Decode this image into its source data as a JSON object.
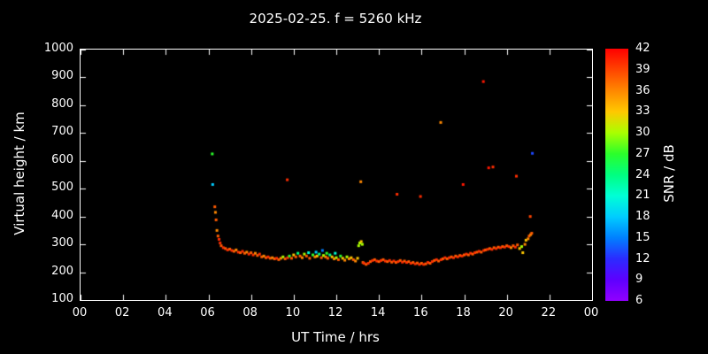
{
  "title": "2025-02-25. f = 5260 kHz",
  "colors": {
    "background": "#000000",
    "foreground": "#ffffff"
  },
  "chart_data": {
    "type": "scatter",
    "title": "2025-02-25. f = 5260 kHz",
    "xlabel": "UT Time / hrs",
    "ylabel": "Virtual height / km",
    "xlim": [
      0,
      24
    ],
    "ylim": [
      100,
      1000
    ],
    "grid": false,
    "x_tick_values": [
      0,
      2,
      4,
      6,
      8,
      10,
      12,
      14,
      16,
      18,
      20,
      22,
      24
    ],
    "x_tick_labels": [
      "00",
      "02",
      "04",
      "06",
      "08",
      "10",
      "12",
      "14",
      "16",
      "18",
      "20",
      "22",
      "00"
    ],
    "y_tick_values": [
      100,
      200,
      300,
      400,
      500,
      600,
      700,
      800,
      900,
      1000
    ],
    "y_tick_labels": [
      "100",
      "200",
      "300",
      "400",
      "500",
      "600",
      "700",
      "800",
      "900",
      "1000"
    ],
    "colorbar": {
      "label": "SNR / dB",
      "tick_values": [
        6,
        9,
        12,
        15,
        18,
        21,
        24,
        27,
        30,
        33,
        36,
        39,
        42
      ],
      "tick_labels": [
        "6",
        "9",
        "12",
        "15",
        "18",
        "21",
        "24",
        "27",
        "30",
        "33",
        "36",
        "39",
        "42"
      ],
      "min": 6,
      "max": 42,
      "stops": [
        [
          6,
          "#9100ff"
        ],
        [
          9,
          "#5e00ff"
        ],
        [
          12,
          "#2b2bff"
        ],
        [
          15,
          "#0080ff"
        ],
        [
          18,
          "#00ccff"
        ],
        [
          21,
          "#00ffd5"
        ],
        [
          24,
          "#00ff80"
        ],
        [
          27,
          "#2bff2b"
        ],
        [
          30,
          "#aaff00"
        ],
        [
          33,
          "#ffc800"
        ],
        [
          36,
          "#ff8800"
        ],
        [
          39,
          "#ff4400"
        ],
        [
          42,
          "#ff0000"
        ]
      ]
    },
    "points": [
      [
        6.18,
        625,
        27
      ],
      [
        6.2,
        515,
        18
      ],
      [
        9.7,
        532,
        40
      ],
      [
        13.15,
        525,
        36
      ],
      [
        14.85,
        480,
        40
      ],
      [
        15.95,
        472,
        40
      ],
      [
        16.9,
        738,
        36
      ],
      [
        17.95,
        515,
        41
      ],
      [
        18.9,
        885,
        41
      ],
      [
        19.15,
        575,
        41
      ],
      [
        19.35,
        578,
        40
      ],
      [
        20.45,
        545,
        40
      ],
      [
        21.2,
        627,
        13
      ],
      [
        21.1,
        400,
        39
      ],
      [
        6.3,
        435,
        38
      ],
      [
        6.33,
        415,
        36
      ],
      [
        6.36,
        388,
        38
      ],
      [
        6.4,
        350,
        36
      ],
      [
        6.45,
        330,
        38
      ],
      [
        6.5,
        318,
        40
      ],
      [
        6.55,
        305,
        40
      ],
      [
        6.6,
        295,
        38
      ],
      [
        6.7,
        288,
        40
      ],
      [
        6.8,
        285,
        38
      ],
      [
        6.9,
        280,
        40
      ],
      [
        7.0,
        283,
        38
      ],
      [
        7.1,
        278,
        40
      ],
      [
        7.2,
        275,
        38
      ],
      [
        7.3,
        280,
        36
      ],
      [
        7.4,
        272,
        40
      ],
      [
        7.5,
        270,
        38
      ],
      [
        7.6,
        275,
        40
      ],
      [
        7.7,
        268,
        38
      ],
      [
        7.8,
        272,
        36
      ],
      [
        7.9,
        265,
        40
      ],
      [
        8.0,
        270,
        38
      ],
      [
        8.1,
        262,
        40
      ],
      [
        8.2,
        268,
        36
      ],
      [
        8.3,
        260,
        38
      ],
      [
        8.4,
        265,
        40
      ],
      [
        8.5,
        255,
        38
      ],
      [
        8.6,
        258,
        36
      ],
      [
        8.7,
        252,
        38
      ],
      [
        8.8,
        255,
        40
      ],
      [
        8.9,
        250,
        38
      ],
      [
        9.0,
        252,
        36
      ],
      [
        9.1,
        248,
        38
      ],
      [
        9.2,
        250,
        40
      ],
      [
        9.3,
        245,
        38
      ],
      [
        9.4,
        250,
        36
      ],
      [
        9.5,
        255,
        30
      ],
      [
        9.6,
        248,
        38
      ],
      [
        9.72,
        252,
        40
      ],
      [
        9.8,
        258,
        27
      ],
      [
        9.9,
        250,
        38
      ],
      [
        10.0,
        262,
        33
      ],
      [
        10.1,
        255,
        38
      ],
      [
        10.2,
        268,
        24
      ],
      [
        10.3,
        258,
        38
      ],
      [
        10.4,
        252,
        36
      ],
      [
        10.5,
        265,
        30
      ],
      [
        10.6,
        258,
        38
      ],
      [
        10.7,
        270,
        21
      ],
      [
        10.75,
        250,
        38
      ],
      [
        10.9,
        262,
        27
      ],
      [
        11.0,
        255,
        36
      ],
      [
        11.05,
        272,
        18
      ],
      [
        11.1,
        258,
        33
      ],
      [
        11.2,
        265,
        24
      ],
      [
        11.3,
        252,
        38
      ],
      [
        11.35,
        278,
        15
      ],
      [
        11.4,
        260,
        30
      ],
      [
        11.5,
        255,
        36
      ],
      [
        11.55,
        268,
        27
      ],
      [
        11.6,
        250,
        38
      ],
      [
        11.7,
        262,
        24
      ],
      [
        11.8,
        255,
        33
      ],
      [
        11.9,
        248,
        36
      ],
      [
        11.95,
        268,
        21
      ],
      [
        12.0,
        252,
        30
      ],
      [
        12.1,
        245,
        38
      ],
      [
        12.2,
        258,
        27
      ],
      [
        12.3,
        250,
        33
      ],
      [
        12.4,
        243,
        36
      ],
      [
        12.5,
        255,
        30
      ],
      [
        12.6,
        248,
        36
      ],
      [
        12.7,
        252,
        33
      ],
      [
        12.8,
        245,
        38
      ],
      [
        12.9,
        240,
        36
      ],
      [
        13.0,
        250,
        33
      ],
      [
        13.05,
        295,
        30
      ],
      [
        13.1,
        305,
        30
      ],
      [
        13.17,
        310,
        33
      ],
      [
        13.22,
        300,
        30
      ],
      [
        13.25,
        235,
        38
      ],
      [
        13.3,
        232,
        40
      ],
      [
        13.4,
        228,
        38
      ],
      [
        13.5,
        232,
        40
      ],
      [
        13.6,
        238,
        38
      ],
      [
        13.7,
        242,
        40
      ],
      [
        13.8,
        245,
        38
      ],
      [
        13.9,
        240,
        40
      ],
      [
        14.0,
        238,
        38
      ],
      [
        14.1,
        242,
        40
      ],
      [
        14.2,
        245,
        38
      ],
      [
        14.3,
        240,
        40
      ],
      [
        14.4,
        238,
        38
      ],
      [
        14.5,
        242,
        40
      ],
      [
        14.6,
        236,
        38
      ],
      [
        14.7,
        240,
        40
      ],
      [
        14.8,
        235,
        38
      ],
      [
        14.9,
        238,
        40
      ],
      [
        15.0,
        242,
        38
      ],
      [
        15.1,
        236,
        40
      ],
      [
        15.2,
        240,
        38
      ],
      [
        15.3,
        235,
        40
      ],
      [
        15.4,
        238,
        38
      ],
      [
        15.5,
        232,
        40
      ],
      [
        15.6,
        235,
        38
      ],
      [
        15.7,
        230,
        40
      ],
      [
        15.8,
        233,
        38
      ],
      [
        15.9,
        228,
        40
      ],
      [
        16.0,
        232,
        38
      ],
      [
        16.1,
        228,
        40
      ],
      [
        16.2,
        230,
        38
      ],
      [
        16.3,
        235,
        40
      ],
      [
        16.4,
        232,
        38
      ],
      [
        16.5,
        238,
        40
      ],
      [
        16.6,
        242,
        38
      ],
      [
        16.7,
        245,
        40
      ],
      [
        16.8,
        240,
        38
      ],
      [
        16.92,
        245,
        40
      ],
      [
        17.0,
        248,
        38
      ],
      [
        17.1,
        252,
        40
      ],
      [
        17.2,
        248,
        38
      ],
      [
        17.3,
        252,
        40
      ],
      [
        17.4,
        255,
        38
      ],
      [
        17.5,
        252,
        40
      ],
      [
        17.6,
        258,
        38
      ],
      [
        17.7,
        255,
        40
      ],
      [
        17.8,
        260,
        38
      ],
      [
        17.9,
        258,
        40
      ],
      [
        18.0,
        262,
        38
      ],
      [
        18.1,
        265,
        40
      ],
      [
        18.2,
        262,
        38
      ],
      [
        18.3,
        268,
        40
      ],
      [
        18.4,
        265,
        38
      ],
      [
        18.5,
        270,
        40
      ],
      [
        18.6,
        272,
        38
      ],
      [
        18.7,
        275,
        40
      ],
      [
        18.8,
        272,
        38
      ],
      [
        18.92,
        278,
        40
      ],
      [
        19.0,
        280,
        38
      ],
      [
        19.1,
        282,
        40
      ],
      [
        19.2,
        285,
        38
      ],
      [
        19.3,
        282,
        40
      ],
      [
        19.4,
        288,
        38
      ],
      [
        19.5,
        285,
        40
      ],
      [
        19.6,
        290,
        38
      ],
      [
        19.7,
        288,
        40
      ],
      [
        19.8,
        292,
        38
      ],
      [
        19.9,
        290,
        40
      ],
      [
        20.0,
        295,
        38
      ],
      [
        20.1,
        292,
        40
      ],
      [
        20.2,
        288,
        36
      ],
      [
        20.3,
        295,
        38
      ],
      [
        20.4,
        290,
        40
      ],
      [
        20.5,
        298,
        38
      ],
      [
        20.6,
        285,
        33
      ],
      [
        20.7,
        292,
        30
      ],
      [
        20.75,
        270,
        33
      ],
      [
        20.85,
        300,
        36
      ],
      [
        20.9,
        315,
        33
      ],
      [
        21.0,
        320,
        36
      ],
      [
        21.05,
        330,
        38
      ],
      [
        21.12,
        335,
        36
      ],
      [
        21.17,
        340,
        38
      ]
    ]
  }
}
